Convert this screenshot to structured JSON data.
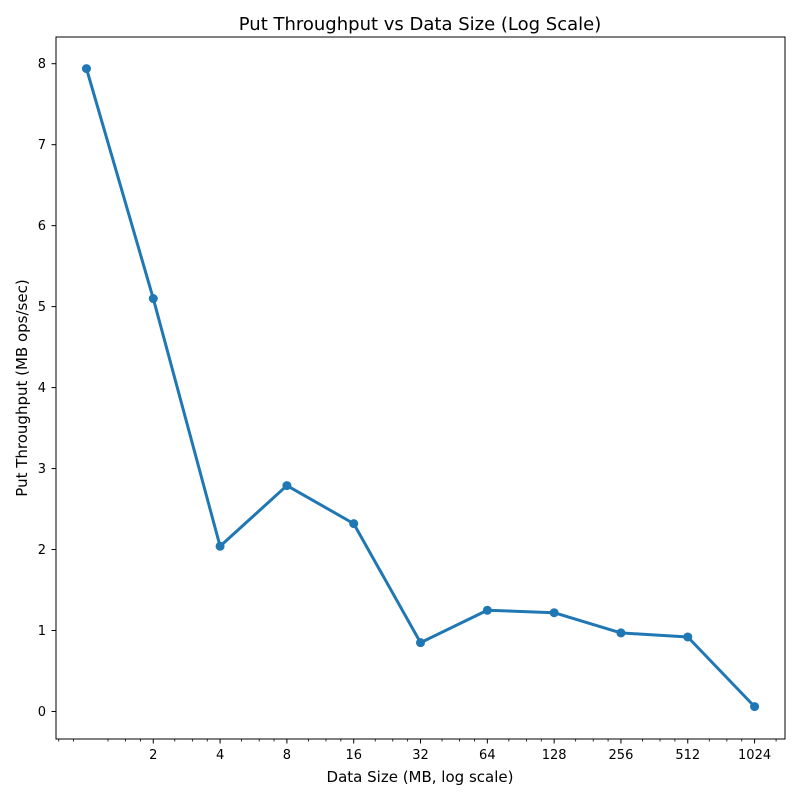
{
  "chart_data": {
    "type": "line",
    "title": "Put Throughput vs Data Size (Log Scale)",
    "xlabel": "Data Size (MB, log scale)",
    "ylabel": "Put Throughput (MB ops/sec)",
    "x_scale": "log2",
    "x": [
      1,
      2,
      4,
      8,
      16,
      32,
      64,
      128,
      256,
      512,
      1024
    ],
    "series": [
      {
        "name": "Put Throughput",
        "color": "#1f77b4",
        "values": [
          7.94,
          5.1,
          2.04,
          2.79,
          2.32,
          0.85,
          1.25,
          1.22,
          0.97,
          0.92,
          0.06
        ]
      }
    ],
    "xticks": [
      {
        "value": 2,
        "label": "2"
      },
      {
        "value": 4,
        "label": "4"
      },
      {
        "value": 8,
        "label": "8"
      },
      {
        "value": 16,
        "label": "16"
      },
      {
        "value": 32,
        "label": "32"
      },
      {
        "value": 64,
        "label": "64"
      },
      {
        "value": 128,
        "label": "128"
      },
      {
        "value": 256,
        "label": "256"
      },
      {
        "value": 512,
        "label": "512"
      },
      {
        "value": 1024,
        "label": "1024"
      }
    ],
    "yticks": [
      {
        "value": 0,
        "label": "0"
      },
      {
        "value": 1,
        "label": "1"
      },
      {
        "value": 2,
        "label": "2"
      },
      {
        "value": 3,
        "label": "3"
      },
      {
        "value": 4,
        "label": "4"
      },
      {
        "value": 5,
        "label": "5"
      },
      {
        "value": 6,
        "label": "6"
      },
      {
        "value": 7,
        "label": "7"
      },
      {
        "value": 8,
        "label": "8"
      }
    ],
    "xlim": [
      0.729,
      1404
    ],
    "ylim": [
      -0.34,
      8.33
    ],
    "grid": false,
    "legend": "none"
  }
}
